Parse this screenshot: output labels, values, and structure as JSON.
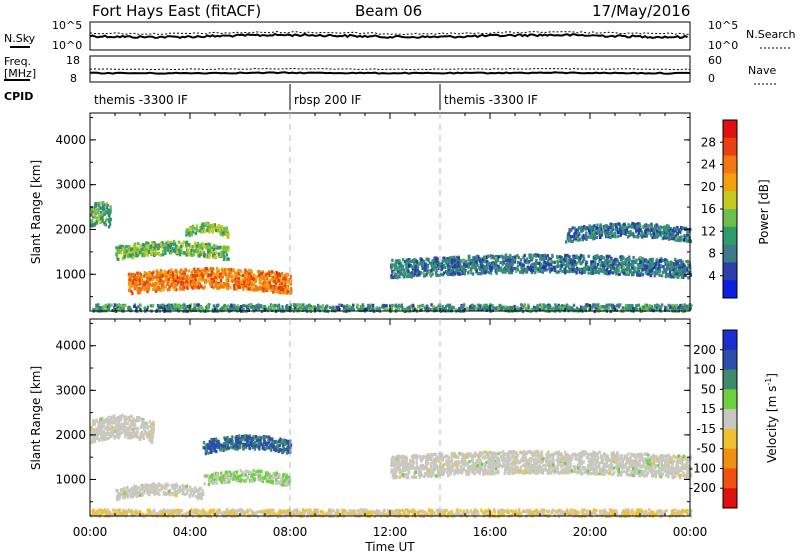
{
  "header": {
    "station": "Fort Hays East (fitACF)",
    "beam": "Beam 06",
    "date": "17/May/2016"
  },
  "top_panel": {
    "left_label": "N.Sky",
    "left_ticks": [
      "10^5",
      "10^0"
    ],
    "right_label": "N.Search",
    "right_ticks": [
      "10^5",
      "10^0"
    ]
  },
  "freq_panel": {
    "left_label_line1": "Freq.",
    "left_label_line2": "[MHz]",
    "left_ticks": [
      "18",
      "8"
    ],
    "right_label": "Nave",
    "right_ticks": [
      "60",
      "0"
    ]
  },
  "cpid": {
    "label": "CPID",
    "segments": [
      {
        "text": "themis -3300 IF",
        "start_hour": 0
      },
      {
        "text": "rbsp 200 IF",
        "start_hour": 8
      },
      {
        "text": "themis -3300 IF",
        "start_hour": 14
      }
    ]
  },
  "power_panel": {
    "ylabel": "Slant Range [km]",
    "yticks": [
      "4000",
      "3000",
      "2000",
      "1000"
    ],
    "colorbar_label": "Power [dB]",
    "colorbar_ticks": [
      "28",
      "24",
      "20",
      "16",
      "12",
      "8",
      "4"
    ],
    "colors": [
      "#0b1fe0",
      "#2d3fa8",
      "#3d7a8a",
      "#2f9a6a",
      "#6cbf4a",
      "#c7c920",
      "#f2a010",
      "#f07a10",
      "#e84010",
      "#e01010"
    ]
  },
  "velocity_panel": {
    "ylabel": "Slant Range [km]",
    "yticks": [
      "4000",
      "3000",
      "2000",
      "1000"
    ],
    "colorbar_label": "Velocity [m s^-1]",
    "colorbar_ticks": [
      "200",
      "100",
      "50",
      "15",
      "-15",
      "-50",
      "-100",
      "-200"
    ],
    "colors": [
      "#1b2fd0",
      "#2a4faa",
      "#3d8a6a",
      "#6cd040",
      "#c8c8c0",
      "#f0c030",
      "#f09010",
      "#f05010",
      "#e01010"
    ]
  },
  "xaxis": {
    "label": "Time UT",
    "ticks": [
      "00:00",
      "04:00",
      "08:00",
      "12:00",
      "16:00",
      "20:00",
      "00:00"
    ]
  },
  "chart_data": [
    {
      "type": "heatmap",
      "title": "Power [dB]",
      "xlabel": "Time UT",
      "ylabel": "Slant Range [km]",
      "xlim": [
        0,
        24
      ],
      "ylim": [
        180,
        4600
      ],
      "colorbar_range": [
        0,
        32
      ],
      "regions": [
        {
          "t_start": 0.0,
          "t_end": 0.8,
          "range_center": 2300,
          "range_width": 500,
          "value": 12
        },
        {
          "t_start": 1.0,
          "t_end": 5.5,
          "range_center": 1500,
          "range_width": 300,
          "value": 14
        },
        {
          "t_start": 3.8,
          "t_end": 5.5,
          "range_center": 1950,
          "range_width": 200,
          "value": 14
        },
        {
          "t_start": 1.5,
          "t_end": 8.0,
          "range_center": 820,
          "range_width": 450,
          "value": 24
        },
        {
          "t_start": 0.0,
          "t_end": 24.0,
          "range_center": 280,
          "range_width": 150,
          "value": 10
        },
        {
          "t_start": 12.0,
          "t_end": 24.0,
          "range_center": 1150,
          "range_width": 400,
          "value": 8
        },
        {
          "t_start": 19.0,
          "t_end": 24.0,
          "range_center": 1900,
          "range_width": 300,
          "value": 8
        }
      ]
    },
    {
      "type": "heatmap",
      "title": "Velocity [m s^-1]",
      "xlabel": "Time UT",
      "ylabel": "Slant Range [km]",
      "xlim": [
        0,
        24
      ],
      "ylim": [
        180,
        4600
      ],
      "colorbar_range": [
        -250,
        250
      ],
      "regions": [
        {
          "t_start": 0.0,
          "t_end": 2.5,
          "range_center": 2100,
          "range_width": 500,
          "value": 0
        },
        {
          "t_start": 4.5,
          "t_end": 8.0,
          "range_center": 1750,
          "range_width": 300,
          "value": 150
        },
        {
          "t_start": 4.5,
          "t_end": 8.0,
          "range_center": 1000,
          "range_width": 250,
          "value": 30
        },
        {
          "t_start": 1.0,
          "t_end": 4.5,
          "range_center": 700,
          "range_width": 250,
          "value": 0
        },
        {
          "t_start": 0.0,
          "t_end": 24.0,
          "range_center": 280,
          "range_width": 150,
          "value": -30
        },
        {
          "t_start": 12.0,
          "t_end": 24.0,
          "range_center": 1300,
          "range_width": 500,
          "value": 0
        }
      ]
    }
  ]
}
